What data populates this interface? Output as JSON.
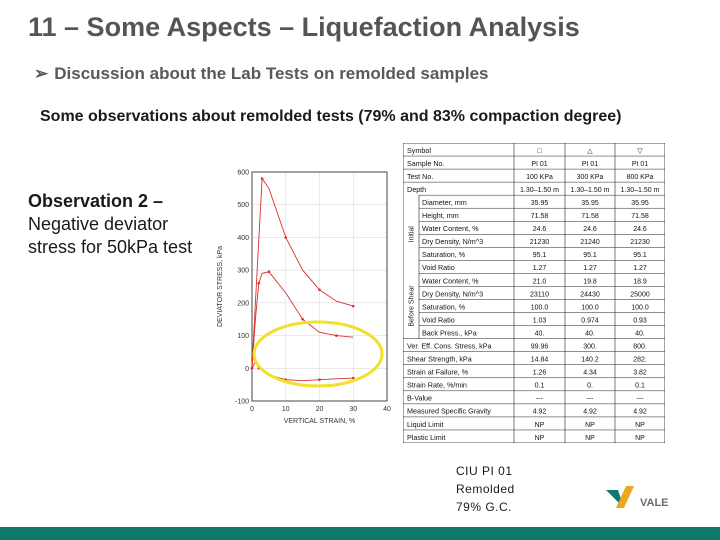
{
  "slide": {
    "title": "11 – Some Aspects – Liquefaction Analysis",
    "bullet": "Discussion about the Lab Tests on remolded samples",
    "subheading": "Some observations about remolded tests  (79% and 83% compaction degree)",
    "observation_title": "Observation 2 –",
    "observation_body": "Negative deviator stress for 50kPa test",
    "caption_lines": [
      "CIU PI 01",
      "Remolded",
      "79% G.C."
    ],
    "logo_text": "VALE",
    "colors": {
      "title": "#555555",
      "bar": "#0d7a6c",
      "curves": "#d9302c",
      "highlight": "#f2e02a"
    }
  },
  "chart_data": {
    "type": "line",
    "xlabel": "VERTICAL STRAIN, %",
    "ylabel": "DEVIATOR STRESS, kPa",
    "xlim": [
      0,
      40
    ],
    "ylim": [
      -100,
      600
    ],
    "x_ticks": [
      "0",
      "10",
      "20",
      "30",
      "40"
    ],
    "y_ticks": [
      "600",
      "500",
      "400",
      "300",
      "200",
      "100",
      "0",
      "-100"
    ],
    "series": [
      {
        "x": [
          0,
          1,
          3,
          5,
          10,
          15,
          20,
          25,
          30
        ],
        "values": [
          0,
          200,
          580,
          550,
          400,
          300,
          240,
          205,
          190
        ]
      },
      {
        "x": [
          0,
          1,
          2,
          3,
          5,
          10,
          15,
          20,
          25,
          30
        ],
        "values": [
          0,
          150,
          260,
          290,
          295,
          230,
          150,
          110,
          100,
          95
        ]
      },
      {
        "x": [
          0,
          1,
          2,
          5,
          10,
          15,
          20,
          25,
          30
        ],
        "values": [
          0,
          20,
          0,
          -20,
          -35,
          -38,
          -35,
          -32,
          -30
        ]
      }
    ]
  },
  "props_table": {
    "header": [
      "Symbol",
      "□",
      "△",
      "▽"
    ],
    "section_labels": [
      "Initial",
      "Before Shear"
    ],
    "rows": [
      [
        "Sample No.",
        "PI 01",
        "PI 01",
        "PI 01"
      ],
      [
        "Test No.",
        "100 KPa",
        "300 KPa",
        "800 KPa"
      ],
      [
        "Depth",
        "1.30–1.50 m",
        "1.30–1.50 m",
        "1.30–1.50 m"
      ],
      [
        "Diameter, mm",
        "35.95",
        "35.95",
        "35.95"
      ],
      [
        "Height, mm",
        "71.58",
        "71.58",
        "71.58"
      ],
      [
        "Water Content, %",
        "24.6",
        "24.6",
        "24.6"
      ],
      [
        "Dry Density, N/m^3",
        "21230",
        "21240",
        "21230"
      ],
      [
        "Saturation, %",
        "95.1",
        "95.1",
        "95.1"
      ],
      [
        "Void Ratio",
        "1.27",
        "1.27",
        "1.27"
      ],
      [
        "Water Content, %",
        "21.0",
        "19.8",
        "18.9"
      ],
      [
        "Dry Density, N/m^3",
        "23110",
        "24430",
        "25000"
      ],
      [
        "Saturation, %",
        "100.0",
        "100.0",
        "100.0"
      ],
      [
        "Void Ratio",
        "1.03",
        "0.974",
        "0.93"
      ],
      [
        "Back Press., kPa",
        "40.",
        "40.",
        "40."
      ],
      [
        "Ver. Eff. Cons. Stress, kPa",
        "99.96",
        "300.",
        "800."
      ],
      [
        "Shear Strength, kPa",
        "14.84",
        "140.2",
        "282."
      ],
      [
        "Strain at Failure, %",
        "1.26",
        "4.34",
        "3.82"
      ],
      [
        "Strain Rate, %/min",
        "0.1",
        "0.",
        "0.1"
      ],
      [
        "B-Value",
        "---",
        "---",
        "---"
      ],
      [
        "Measured Specific Gravity",
        "4.92",
        "4.92",
        "4.92"
      ],
      [
        "Liquid Limit",
        "NP",
        "NP",
        "NP"
      ],
      [
        "Plastic Limit",
        "NP",
        "NP",
        "NP"
      ]
    ]
  }
}
